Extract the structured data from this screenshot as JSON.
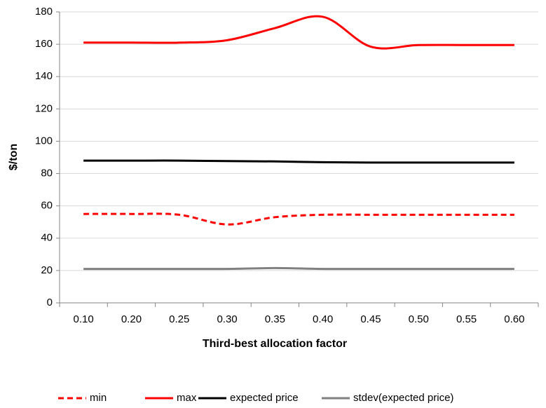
{
  "chart_data": {
    "type": "line",
    "x_label": "Third-best allocation factor",
    "y_label": "$/ton",
    "categories": [
      "0.10",
      "0.20",
      "0.25",
      "0.30",
      "0.35",
      "0.40",
      "0.45",
      "0.50",
      "0.55",
      "0.60"
    ],
    "series": [
      {
        "name": "min",
        "color": "#ff0000",
        "dashed": true,
        "values": [
          55,
          55,
          54.5,
          48.5,
          53,
          54.5,
          54.5,
          54.5,
          54.5,
          54.5
        ]
      },
      {
        "name": "max",
        "color": "#ff0000",
        "dashed": false,
        "values": [
          161,
          161,
          161,
          162.5,
          170,
          177,
          158.5,
          159.5,
          159.5,
          159.5
        ]
      },
      {
        "name": "expected price",
        "color": "#000000",
        "dashed": false,
        "values": [
          88,
          88,
          88,
          87.7,
          87.5,
          87,
          86.8,
          86.8,
          86.8,
          86.8
        ]
      },
      {
        "name": "stdev(expected price)",
        "color": "#808080",
        "dashed": false,
        "values": [
          21,
          21,
          21,
          21,
          21.5,
          21,
          21,
          21,
          21,
          21
        ]
      }
    ],
    "ylim": [
      0,
      180
    ],
    "yticks": [
      0,
      20,
      40,
      60,
      80,
      100,
      120,
      140,
      160,
      180
    ],
    "grid": true,
    "smooth": true,
    "legend": "bottom"
  }
}
